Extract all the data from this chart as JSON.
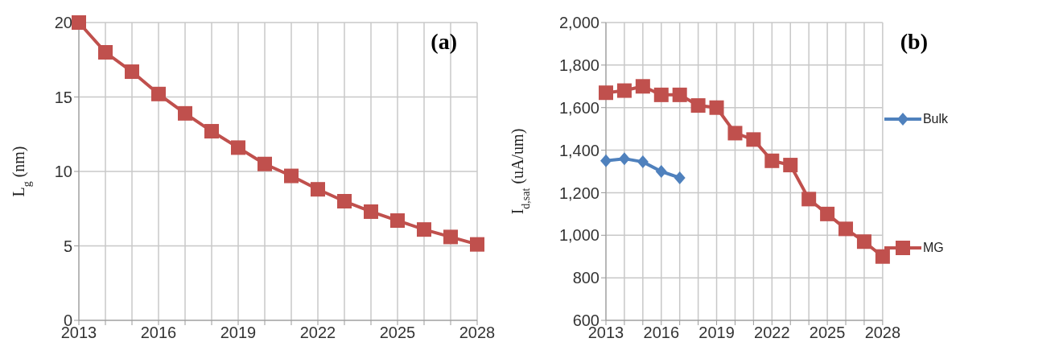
{
  "chart_data": [
    {
      "type": "line",
      "x": [
        2013,
        2014,
        2015,
        2016,
        2017,
        2018,
        2019,
        2020,
        2021,
        2022,
        2023,
        2024,
        2025,
        2026,
        2027,
        2028
      ],
      "series": [
        {
          "color": "#c0504d",
          "values": [
            20,
            18,
            16.7,
            15.2,
            13.9,
            12.7,
            11.6,
            10.5,
            9.7,
            8.8,
            8.0,
            7.3,
            6.7,
            6.1,
            5.6,
            5.1
          ]
        }
      ],
      "ylabel": "L$_{g}$ (nm)",
      "annotations": [
        "(a)"
      ],
      "xlim": [
        2013,
        2028
      ],
      "xticks": [
        2013,
        {
          "value": 2014,
          "label": null
        },
        {
          "value": 2015,
          "label": null
        },
        2016,
        {
          "value": 2017,
          "label": null
        },
        {
          "value": 2018,
          "label": null
        },
        2019,
        {
          "value": 2020,
          "label": null
        },
        {
          "value": 2021,
          "label": null
        },
        2022,
        {
          "value": 2023,
          "label": null
        },
        {
          "value": 2024,
          "label": null
        },
        2025,
        {
          "value": 2026,
          "label": null
        },
        {
          "value": 2027,
          "label": null
        },
        2028
      ],
      "ylim": [
        0,
        20
      ],
      "yticks": [
        0,
        5,
        10,
        15,
        20
      ],
      "grid": true,
      "legend": false,
      "marker": "square"
    },
    {
      "type": "line",
      "x": [
        2013,
        2014,
        2015,
        2016,
        2017,
        2018,
        2019,
        2020,
        2021,
        2022,
        2023,
        2024,
        2025,
        2026,
        2027,
        2028
      ],
      "series": [
        {
          "name": "Bulk",
          "color": "#4f81bd",
          "x": [
            2013,
            2014,
            2015,
            2016,
            2017
          ],
          "values": [
            1350,
            1360,
            1345,
            1300,
            1270
          ],
          "marker": "diamond"
        },
        {
          "name": "MG",
          "color": "#c0504d",
          "values": [
            1670,
            1680,
            1700,
            1660,
            1660,
            1610,
            1600,
            1480,
            1450,
            1350,
            1330,
            1170,
            1100,
            1030,
            970,
            900
          ],
          "marker": "square"
        }
      ],
      "ylabel": "I$_{d,sat}$ (uA/um)",
      "annotations": [
        "(b)"
      ],
      "xlim": [
        2013,
        2028
      ],
      "xticks": [
        2013,
        {
          "value": 2014,
          "label": null
        },
        {
          "value": 2015,
          "label": null
        },
        2016,
        {
          "value": 2017,
          "label": null
        },
        {
          "value": 2018,
          "label": null
        },
        2019,
        {
          "value": 2020,
          "label": null
        },
        {
          "value": 2021,
          "label": null
        },
        2022,
        {
          "value": 2023,
          "label": null
        },
        {
          "value": 2024,
          "label": null
        },
        2025,
        {
          "value": 2026,
          "label": null
        },
        {
          "value": 2027,
          "label": null
        },
        2028
      ],
      "ylim": [
        600,
        2000
      ],
      "yticks": [
        600,
        800,
        {
          "value": 1000,
          "label": "1,000"
        },
        {
          "value": 1200,
          "label": "1,200"
        },
        {
          "value": 1400,
          "label": "1,400"
        },
        {
          "value": 1600,
          "label": "1,600"
        },
        {
          "value": 1800,
          "label": "1,800"
        },
        {
          "value": 2000,
          "label": "2,000"
        }
      ],
      "grid": true,
      "legend": "right"
    }
  ]
}
